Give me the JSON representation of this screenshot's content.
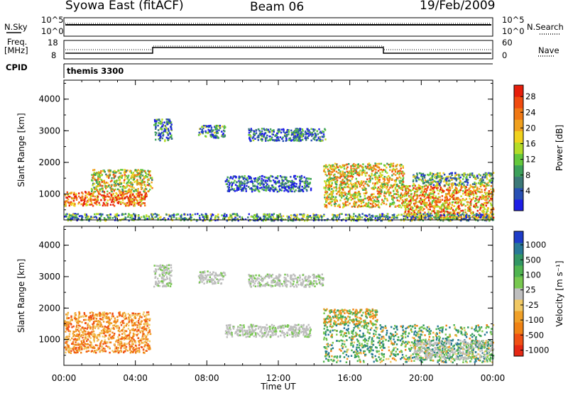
{
  "header": {
    "title": "Syowa East (fitACF)",
    "beam": "Beam 06",
    "date": "19/Feb/2009"
  },
  "summary": {
    "nsky_label": "N.Sky",
    "nsearch_label": "N.Search",
    "freq_label_1": "Freq.",
    "freq_label_2": "[MHz]",
    "nave_label": "Nave",
    "cpid_label": "CPID",
    "cpid_value": "themis 3300",
    "nsky_ticks": [
      "10^5",
      "10^0"
    ],
    "nsearch_ticks": [
      "10^5",
      "10^0"
    ],
    "freq_ticks": [
      "18",
      "8"
    ],
    "nave_ticks": [
      "60",
      "0"
    ]
  },
  "chart_data": [
    {
      "type": "heatmap",
      "name": "power",
      "xlabel": "",
      "ylabel": "Slant Range [km]",
      "x_range_hours": [
        0,
        24
      ],
      "ylim": [
        180,
        4600
      ],
      "yticks": [
        "1000",
        "2000",
        "3000",
        "4000"
      ],
      "colorbar_label": "Power [dB]",
      "colorbar_ticks": [
        "4",
        "8",
        "12",
        "16",
        "20",
        "24",
        "28"
      ],
      "colorbar_colors": [
        "#1e1ee6",
        "#2850b4",
        "#3c7878",
        "#3ca05a",
        "#64c83c",
        "#b4dc28",
        "#f0d21e",
        "#f0a01e",
        "#f07814",
        "#f04b0f",
        "#e61e0a"
      ],
      "regions": [
        {
          "t": [
            0.0,
            4.6
          ],
          "r": [
            650,
            1100
          ],
          "level": 0.85
        },
        {
          "t": [
            1.5,
            4.9
          ],
          "r": [
            1100,
            1800
          ],
          "level": 0.55
        },
        {
          "t": [
            5.0,
            6.0
          ],
          "r": [
            2700,
            3400
          ],
          "level": 0.2
        },
        {
          "t": [
            7.5,
            9.0
          ],
          "r": [
            2800,
            3200
          ],
          "level": 0.25
        },
        {
          "t": [
            9.0,
            13.8
          ],
          "r": [
            1100,
            1600
          ],
          "level": 0.1
        },
        {
          "t": [
            10.3,
            13.3
          ],
          "r": [
            2700,
            3100
          ],
          "level": 0.15
        },
        {
          "t": [
            12.8,
            14.6
          ],
          "r": [
            2700,
            3100
          ],
          "level": 0.12
        },
        {
          "t": [
            14.5,
            19.0
          ],
          "r": [
            600,
            2000
          ],
          "level": 0.6
        },
        {
          "t": [
            19.0,
            24.0
          ],
          "r": [
            250,
            1300
          ],
          "level": 0.7
        },
        {
          "t": [
            19.5,
            24.0
          ],
          "r": [
            1300,
            1700
          ],
          "level": 0.35
        },
        {
          "t": [
            0.0,
            24.0
          ],
          "r": [
            180,
            400
          ],
          "level": 0.3
        }
      ]
    },
    {
      "type": "heatmap",
      "name": "velocity",
      "xlabel": "Time UT",
      "ylabel": "Slant Range [km]",
      "x_range_hours": [
        0,
        24
      ],
      "xticks": [
        "00:00",
        "04:00",
        "08:00",
        "12:00",
        "16:00",
        "20:00",
        "00:00"
      ],
      "ylim": [
        180,
        4600
      ],
      "yticks": [
        "1000",
        "2000",
        "3000",
        "4000"
      ],
      "colorbar_label": "Velocity [m s⁻¹]",
      "colorbar_ticks": [
        "1000",
        "500",
        "100",
        "25",
        "-25",
        "-100",
        "-500",
        "-1000"
      ],
      "colorbar_colors": [
        "#1e3cc8",
        "#287896",
        "#329664",
        "#50b450",
        "#78c850",
        "#bebebe",
        "#f0c864",
        "#f0a028",
        "#f08214",
        "#f05014",
        "#e62814"
      ],
      "regions": [
        {
          "t": [
            0.0,
            4.8
          ],
          "r": [
            600,
            1900
          ],
          "level": "neg"
        },
        {
          "t": [
            5.0,
            6.0
          ],
          "r": [
            2700,
            3400
          ],
          "level": "grey"
        },
        {
          "t": [
            7.5,
            9.0
          ],
          "r": [
            2800,
            3200
          ],
          "level": "grey"
        },
        {
          "t": [
            9.0,
            13.8
          ],
          "r": [
            1100,
            1500
          ],
          "level": "grey"
        },
        {
          "t": [
            10.3,
            14.5
          ],
          "r": [
            2700,
            3100
          ],
          "level": "grey"
        },
        {
          "t": [
            14.5,
            17.5
          ],
          "r": [
            1500,
            2000
          ],
          "level": "mixneg"
        },
        {
          "t": [
            14.5,
            24.0
          ],
          "r": [
            300,
            1500
          ],
          "level": "pos"
        },
        {
          "t": [
            19.5,
            24.0
          ],
          "r": [
            400,
            1000
          ],
          "level": "mix"
        }
      ]
    }
  ]
}
